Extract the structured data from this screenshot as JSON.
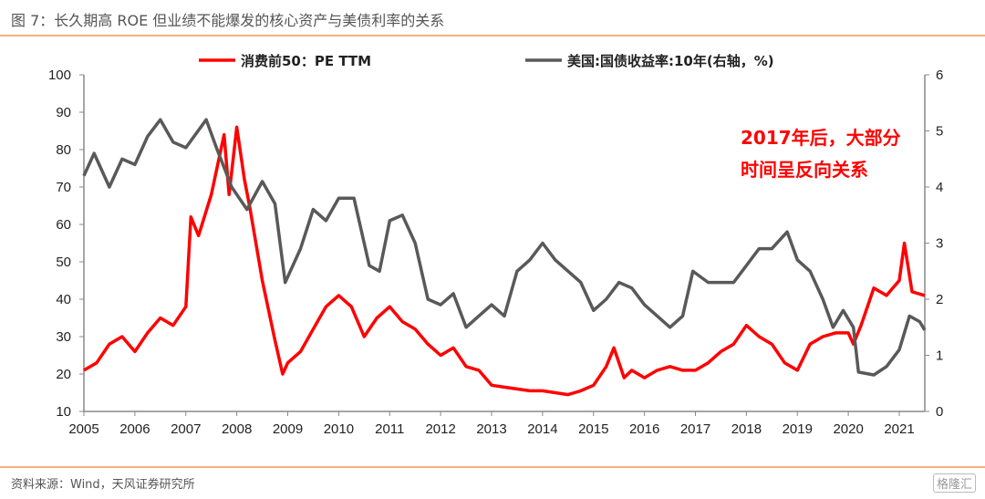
{
  "title": "图 7：长久期高 ROE 但业绩不能爆发的核心资产与美债利率的关系",
  "source": "资料来源：Wind，天风证券研究所",
  "watermark": "格隆汇",
  "chart_data": {
    "type": "line",
    "title": "图 7：长久期高 ROE 但业绩不能爆发的核心资产与美债利率的关系",
    "x_ticks": [
      "2005",
      "2006",
      "2007",
      "2008",
      "2009",
      "2010",
      "2011",
      "2012",
      "2013",
      "2014",
      "2015",
      "2016",
      "2017",
      "2018",
      "2019",
      "2020",
      "2021"
    ],
    "xlim": [
      2005,
      2021.5
    ],
    "y_left": {
      "ticks": [
        "10",
        "20",
        "30",
        "40",
        "50",
        "60",
        "70",
        "80",
        "90",
        "100"
      ],
      "ylim": [
        10,
        100
      ]
    },
    "y_right": {
      "ticks": [
        "0",
        "1",
        "2",
        "3",
        "4",
        "5",
        "6"
      ],
      "ylim": [
        0,
        6
      ]
    },
    "legend_position": "top",
    "annotation": [
      "2017年后，大部分",
      "时间呈反向关系"
    ],
    "series": [
      {
        "name": "消费前50：PE TTM",
        "axis": "left",
        "color": "#ff0000",
        "x": [
          2005.0,
          2005.25,
          2005.5,
          2005.75,
          2006.0,
          2006.25,
          2006.5,
          2006.75,
          2007.0,
          2007.1,
          2007.25,
          2007.5,
          2007.75,
          2007.85,
          2008.0,
          2008.15,
          2008.25,
          2008.5,
          2008.75,
          2008.9,
          2009.0,
          2009.25,
          2009.5,
          2009.75,
          2010.0,
          2010.25,
          2010.5,
          2010.75,
          2011.0,
          2011.25,
          2011.5,
          2011.75,
          2012.0,
          2012.25,
          2012.5,
          2012.75,
          2013.0,
          2013.25,
          2013.5,
          2013.75,
          2014.0,
          2014.5,
          2014.75,
          2015.0,
          2015.25,
          2015.4,
          2015.6,
          2015.75,
          2016.0,
          2016.25,
          2016.5,
          2016.75,
          2017.0,
          2017.25,
          2017.5,
          2017.75,
          2018.0,
          2018.25,
          2018.5,
          2018.75,
          2019.0,
          2019.25,
          2019.5,
          2019.75,
          2020.0,
          2020.1,
          2020.25,
          2020.5,
          2020.75,
          2021.0,
          2021.1,
          2021.25,
          2021.5
        ],
        "y": [
          21,
          23,
          28,
          30,
          26,
          31,
          35,
          33,
          38,
          62,
          57,
          68,
          84,
          68,
          86,
          72,
          65,
          45,
          29,
          20,
          23,
          26,
          32,
          38,
          41,
          38,
          30,
          35,
          38,
          34,
          32,
          28,
          25,
          27,
          22,
          21,
          17,
          16.5,
          16,
          15.5,
          15.5,
          14.5,
          15.5,
          17,
          22,
          27,
          19,
          21,
          19,
          21,
          22,
          21,
          21,
          23,
          26,
          28,
          33,
          30,
          28,
          23,
          21,
          28,
          30,
          31,
          31,
          28,
          33,
          43,
          41,
          45,
          55,
          42,
          41
        ]
      },
      {
        "name": "美国:国债收益率:10年(右轴，%)",
        "axis": "right",
        "color": "#595959",
        "x": [
          2005.0,
          2005.2,
          2005.5,
          2005.75,
          2006.0,
          2006.25,
          2006.5,
          2006.75,
          2007.0,
          2007.4,
          2007.6,
          2007.9,
          2008.2,
          2008.5,
          2008.75,
          2008.95,
          2009.25,
          2009.5,
          2009.75,
          2010.0,
          2010.3,
          2010.6,
          2010.8,
          2011.0,
          2011.25,
          2011.5,
          2011.75,
          2012.0,
          2012.25,
          2012.5,
          2012.75,
          2013.0,
          2013.25,
          2013.5,
          2013.75,
          2014.0,
          2014.25,
          2014.75,
          2015.0,
          2015.25,
          2015.5,
          2015.75,
          2016.0,
          2016.5,
          2016.75,
          2016.95,
          2017.25,
          2017.75,
          2018.0,
          2018.25,
          2018.5,
          2018.8,
          2019.0,
          2019.25,
          2019.5,
          2019.7,
          2019.9,
          2020.1,
          2020.2,
          2020.5,
          2020.75,
          2021.0,
          2021.2,
          2021.4,
          2021.5
        ],
        "y": [
          4.2,
          4.6,
          4.0,
          4.5,
          4.4,
          4.9,
          5.2,
          4.8,
          4.7,
          5.2,
          4.7,
          4.0,
          3.6,
          4.1,
          3.7,
          2.3,
          2.9,
          3.6,
          3.4,
          3.8,
          3.8,
          2.6,
          2.5,
          3.4,
          3.5,
          3.0,
          2.0,
          1.9,
          2.1,
          1.5,
          1.7,
          1.9,
          1.7,
          2.5,
          2.7,
          3.0,
          2.7,
          2.3,
          1.8,
          2.0,
          2.3,
          2.2,
          1.9,
          1.5,
          1.7,
          2.5,
          2.3,
          2.3,
          2.6,
          2.9,
          2.9,
          3.2,
          2.7,
          2.5,
          2.0,
          1.5,
          1.8,
          1.5,
          0.7,
          0.65,
          0.8,
          1.1,
          1.7,
          1.6,
          1.45
        ]
      }
    ]
  }
}
